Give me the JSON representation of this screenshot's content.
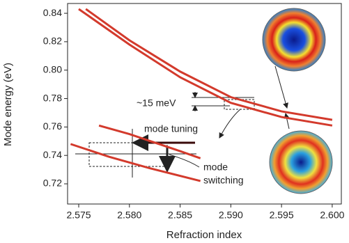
{
  "chart_data": {
    "type": "line",
    "xlabel": "Refraction index",
    "ylabel": "Mode energy (eV)",
    "xlim": [
      2.5739,
      2.6009
    ],
    "ylim": [
      0.7058,
      0.8469
    ],
    "xticks": [
      2.575,
      {
        "value": 2.58,
        "label": "2.580"
      },
      2.585,
      {
        "value": 2.59,
        "label": "2.590"
      },
      2.595,
      {
        "value": 2.6,
        "label": "2.600"
      }
    ],
    "yticks": [
      0.72,
      0.74,
      0.76,
      0.78,
      {
        "value": 0.8,
        "label": "0.80"
      },
      0.82,
      0.84
    ],
    "series": [
      {
        "color": "#d33a2c",
        "x": [
          2.5757,
          2.58,
          2.585,
          2.59,
          2.595,
          2.6
        ],
        "values": [
          0.843,
          0.821,
          0.799,
          0.781,
          0.771,
          0.765
        ]
      },
      {
        "color": "#d33a2c",
        "x": [
          2.575,
          2.58,
          2.585,
          2.59,
          2.595,
          2.6
        ],
        "values": [
          0.843,
          0.818,
          0.795,
          0.777,
          0.767,
          0.761
        ]
      },
      {
        "color": "#d33a2c",
        "x": [
          2.577,
          2.58,
          2.585,
          2.587
        ],
        "values": [
          0.761,
          0.755,
          0.743,
          0.738
        ]
      },
      {
        "color": "#d33a2c",
        "x": [
          2.5742,
          2.578,
          2.582,
          2.587
        ],
        "values": [
          0.748,
          0.739,
          0.731,
          0.722
        ]
      }
    ],
    "annotations": [
      "~15 meV",
      "mode tuning",
      "mode",
      "switching"
    ]
  }
}
